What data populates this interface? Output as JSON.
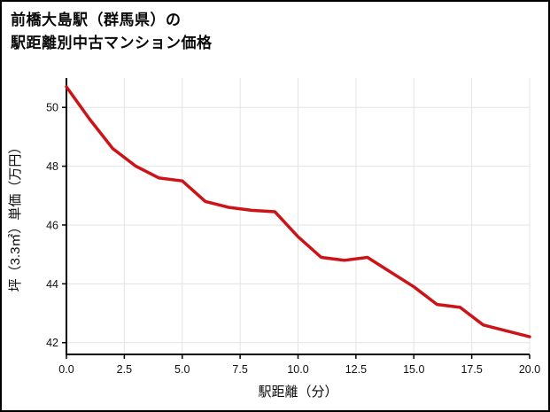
{
  "title": {
    "line1": "前橋大島駅（群馬県）の",
    "line2": "駅距離別中古マンション価格"
  },
  "chart_data": {
    "type": "line",
    "title": "前橋大島駅（群馬県）の駅距離別中古マンション価格",
    "xlabel": "駅距離（分）",
    "ylabel": "坪（3.3㎡）単価（万円）",
    "x": [
      0,
      1,
      2,
      3,
      4,
      5,
      6,
      7,
      8,
      9,
      10,
      11,
      12,
      13,
      14,
      15,
      16,
      17,
      18,
      19,
      20
    ],
    "values": [
      50.7,
      49.6,
      48.6,
      48.0,
      47.6,
      47.5,
      46.8,
      46.6,
      46.5,
      46.45,
      45.6,
      44.9,
      44.8,
      44.9,
      44.4,
      43.9,
      43.3,
      43.2,
      42.6,
      42.4,
      42.2
    ],
    "xlim": [
      0,
      20
    ],
    "ylim": [
      41.6,
      51.0
    ],
    "xticks": [
      0,
      2.5,
      5,
      7.5,
      10,
      12.5,
      15,
      17.5,
      20
    ],
    "xtick_labels": [
      "0.0",
      "2.5",
      "5.0",
      "7.5",
      "10.0",
      "12.5",
      "15.0",
      "17.5",
      "20.0"
    ],
    "yticks": [
      42,
      44,
      46,
      48,
      50
    ],
    "ytick_labels": [
      "42",
      "44",
      "46",
      "48",
      "50"
    ],
    "grid": true,
    "legend": false,
    "line_color": "#cc1418",
    "line_width": 3.5,
    "grid_color": "#e3e3e3",
    "axis_color": "#000000",
    "tick_label_color": "#111111"
  }
}
